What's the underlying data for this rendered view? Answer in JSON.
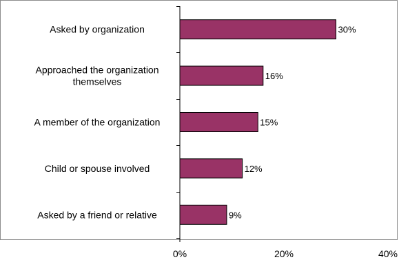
{
  "chart_data": {
    "type": "bar",
    "orientation": "horizontal",
    "categories": [
      [
        "Asked by organization"
      ],
      [
        "Approached the organization",
        "themselves"
      ],
      [
        "A member of the organization"
      ],
      [
        "Child or spouse involved"
      ],
      [
        "Asked by a friend or relative"
      ]
    ],
    "values": [
      30,
      16,
      15,
      12,
      9
    ],
    "value_labels": [
      "30%",
      "16%",
      "15%",
      "12%",
      "9%"
    ],
    "xlim": [
      0,
      40
    ],
    "x_ticks": [
      0,
      20,
      40
    ],
    "x_tick_labels": [
      "0%",
      "20%",
      "40%"
    ],
    "grid": false,
    "legend": "none",
    "bar_color": "#993366",
    "bar_edge_color": "#000000"
  }
}
